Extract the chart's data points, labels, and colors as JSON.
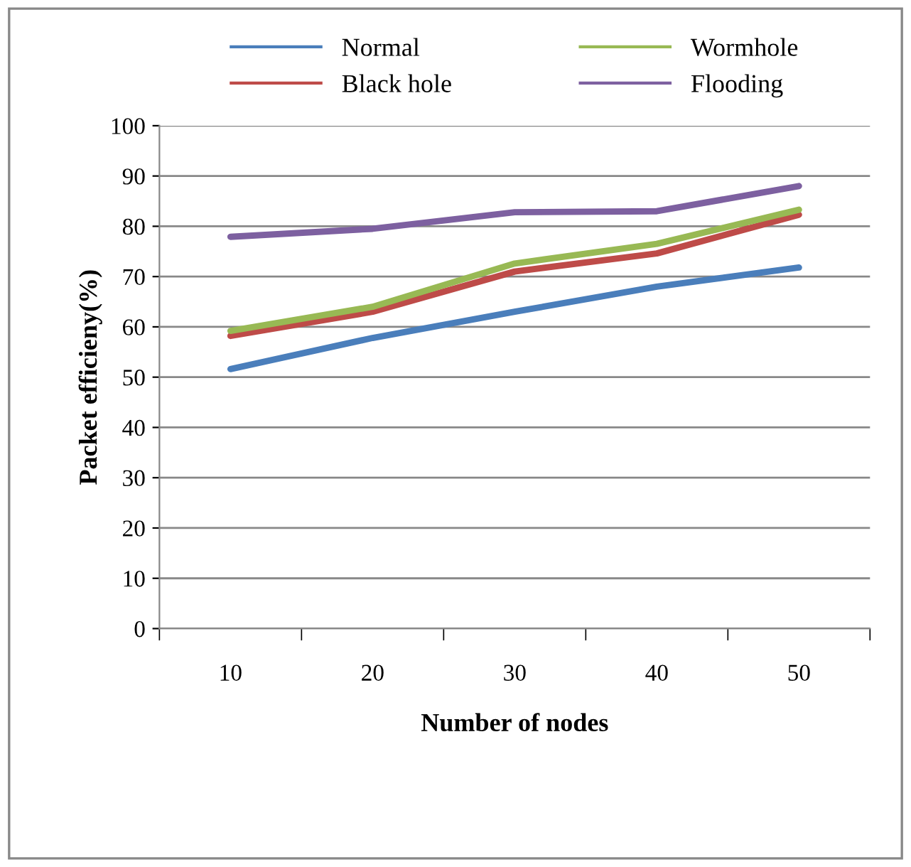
{
  "chart_data": {
    "type": "line",
    "xlabel": "Number of nodes",
    "ylabel": "Packet efficieny(%)",
    "categories": [
      "10",
      "20",
      "30",
      "40",
      "50"
    ],
    "series": [
      {
        "name": "Normal",
        "color": "#4a7ebb",
        "values": [
          51.6,
          57.8,
          63,
          68,
          71.8
        ]
      },
      {
        "name": "Black hole",
        "color": "#be4b48",
        "values": [
          58.2,
          63,
          71,
          74.6,
          82.3
        ]
      },
      {
        "name": "Wormhole",
        "color": "#98b954",
        "values": [
          59.2,
          64,
          72.6,
          76.5,
          83.3
        ]
      },
      {
        "name": "Flooding",
        "color": "#7d60a0",
        "values": [
          77.9,
          79.5,
          82.8,
          83,
          88
        ]
      }
    ],
    "ylim": [
      0,
      100
    ],
    "yticks": [
      0,
      10,
      20,
      30,
      40,
      50,
      60,
      70,
      80,
      90,
      100
    ],
    "grid": "y",
    "legend": "top",
    "marker": "none",
    "line_style": "solid"
  }
}
